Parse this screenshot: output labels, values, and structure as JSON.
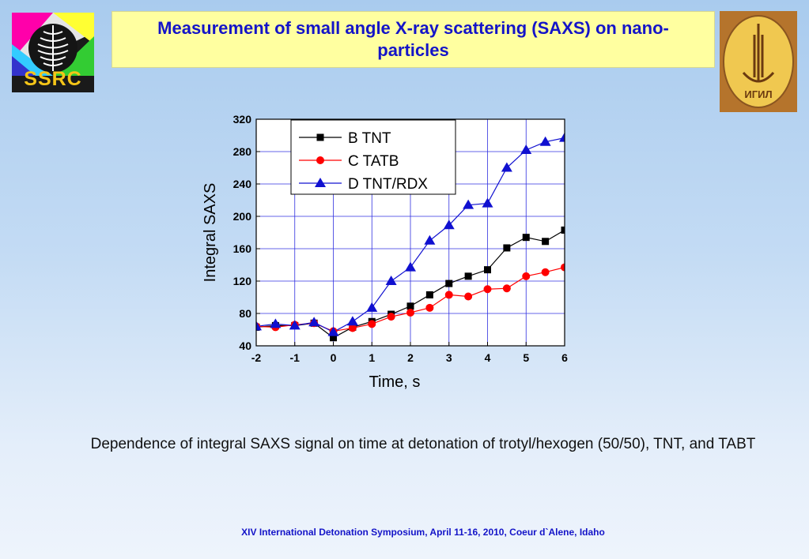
{
  "header": {
    "title": "Measurement of small angle X-ray scattering (SAXS) on nano-particles",
    "left_logo_text": "SSRC",
    "right_logo_text": "ИГИЛ"
  },
  "caption": "Dependence of integral SAXS signal on time at detonation of trotyl/hexogen (50/50), TNT, and TABT",
  "footer": "XIV International Detonation Symposium,  April 11-16, 2010, Coeur d`Alene, Idaho",
  "colors": {
    "title_text": "#1414c8",
    "title_bg": "#ffffa0",
    "series_b": "#000000",
    "series_c": "#ff0000",
    "series_d": "#1010d0",
    "grid": "#3030e0"
  },
  "chart_data": {
    "type": "line",
    "title": "",
    "xlabel": "Time,   s",
    "ylabel": "Integral SAXS",
    "xlim": [
      -2,
      6
    ],
    "ylim": [
      40,
      320
    ],
    "xticks": [
      -2,
      -1,
      0,
      1,
      2,
      3,
      4,
      5,
      6
    ],
    "yticks": [
      40,
      80,
      120,
      160,
      200,
      240,
      280,
      320
    ],
    "grid": true,
    "legend_position": "top-left",
    "series": [
      {
        "name": "B TNT",
        "color": "#000000",
        "marker": "square",
        "x": [
          -2,
          -1.5,
          -1,
          -0.5,
          0,
          0.5,
          1,
          1.5,
          2,
          2.5,
          3,
          3.5,
          4,
          4.5,
          5,
          5.5,
          6
        ],
        "y": [
          63,
          65,
          65,
          68,
          50,
          63,
          70,
          79,
          89,
          103,
          117,
          126,
          134,
          161,
          174,
          169,
          183
        ]
      },
      {
        "name": "C TATB",
        "color": "#ff0000",
        "marker": "circle",
        "x": [
          -2,
          -1.5,
          -1,
          -0.5,
          0,
          0.5,
          1,
          1.5,
          2,
          2.5,
          3,
          3.5,
          4,
          4.5,
          5,
          5.5,
          6
        ],
        "y": [
          64,
          63,
          66,
          68,
          58,
          62,
          67,
          76,
          81,
          87,
          103,
          101,
          110,
          111,
          126,
          131,
          137
        ]
      },
      {
        "name": "D TNT/RDX",
        "color": "#1010d0",
        "marker": "triangle",
        "x": [
          -2,
          -1.5,
          -1,
          -0.5,
          0,
          0.5,
          1,
          1.5,
          2,
          2.5,
          3,
          3.5,
          4,
          4.5,
          5,
          5.5,
          6
        ],
        "y": [
          64,
          67,
          65,
          69,
          57,
          70,
          87,
          120,
          137,
          170,
          189,
          214,
          216,
          260,
          282,
          292,
          297
        ]
      }
    ]
  }
}
